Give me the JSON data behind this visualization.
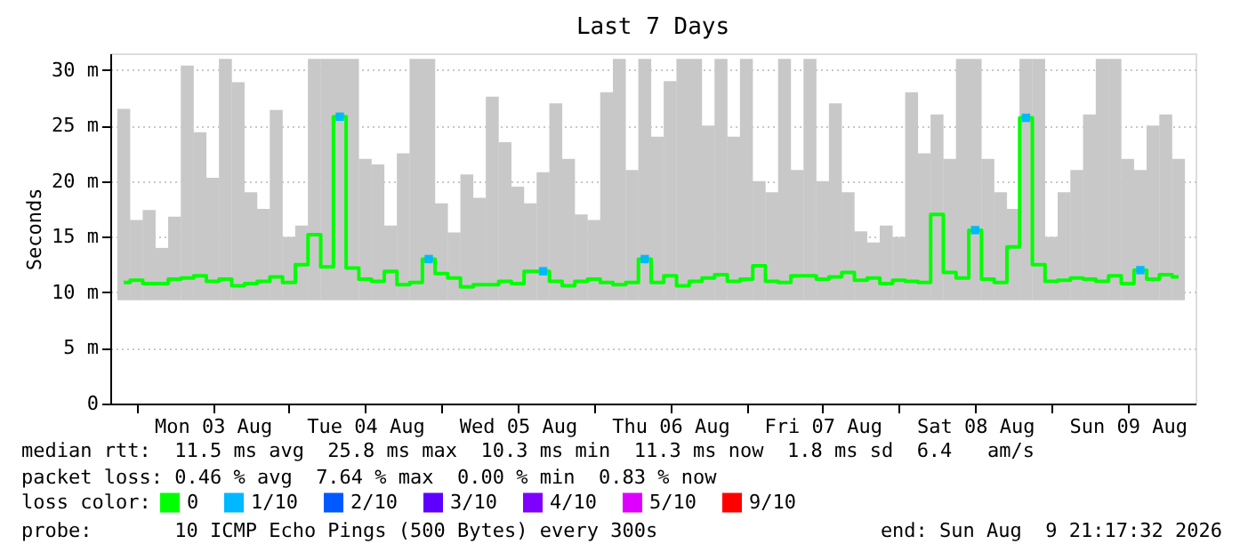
{
  "chart_data": {
    "type": "step",
    "title": "Last 7 Days",
    "ylabel": "Seconds",
    "legend_title": "loss color:",
    "legend": "bottom",
    "grid": true,
    "marker": "none",
    "xlim": [
      "2026-08-02T21:17",
      "2026-08-09T21:17"
    ],
    "xticks": [
      {
        "value": "2026-08-03T00:00",
        "label": null
      },
      {
        "value": "2026-08-03T12:00",
        "label": "Mon 03 Aug"
      },
      {
        "value": "2026-08-04T00:00",
        "label": null
      },
      {
        "value": "2026-08-04T12:00",
        "label": "Tue 04 Aug"
      },
      {
        "value": "2026-08-05T00:00",
        "label": null
      },
      {
        "value": "2026-08-05T12:00",
        "label": "Wed 05 Aug"
      },
      {
        "value": "2026-08-06T00:00",
        "label": null
      },
      {
        "value": "2026-08-06T12:00",
        "label": "Thu 06 Aug"
      },
      {
        "value": "2026-08-07T00:00",
        "label": null
      },
      {
        "value": "2026-08-07T12:00",
        "label": "Fri 07 Aug"
      },
      {
        "value": "2026-08-08T00:00",
        "label": null
      },
      {
        "value": "2026-08-08T12:00",
        "label": "Sat 08 Aug"
      },
      {
        "value": "2026-08-09T00:00",
        "label": null
      },
      {
        "value": "2026-08-09T12:00",
        "label": "Sun 09 Aug"
      }
    ],
    "ylim": [
      0,
      31.5
    ],
    "yticks": [
      0,
      {
        "value": 5,
        "label": "5 m"
      },
      {
        "value": 10,
        "label": "10 m"
      },
      {
        "value": 15,
        "label": "15 m"
      },
      {
        "value": 20,
        "label": "20 m"
      },
      {
        "value": 25,
        "label": "25 m"
      },
      {
        "value": 30,
        "label": "30 m"
      }
    ],
    "x": [
      "2026-08-02T22:00",
      "2026-08-03T00:00",
      "2026-08-03T02:00",
      "2026-08-03T04:00",
      "2026-08-03T06:00",
      "2026-08-03T08:00",
      "2026-08-03T10:00",
      "2026-08-03T12:00",
      "2026-08-03T14:00",
      "2026-08-03T16:00",
      "2026-08-03T18:00",
      "2026-08-03T20:00",
      "2026-08-03T22:00",
      "2026-08-04T00:00",
      "2026-08-04T02:00",
      "2026-08-04T04:00",
      "2026-08-04T06:00",
      "2026-08-04T08:00",
      "2026-08-04T10:00",
      "2026-08-04T12:00",
      "2026-08-04T14:00",
      "2026-08-04T16:00",
      "2026-08-04T18:00",
      "2026-08-04T20:00",
      "2026-08-04T22:00",
      "2026-08-05T00:00",
      "2026-08-05T02:00",
      "2026-08-05T04:00",
      "2026-08-05T06:00",
      "2026-08-05T08:00",
      "2026-08-05T10:00",
      "2026-08-05T12:00",
      "2026-08-05T14:00",
      "2026-08-05T16:00",
      "2026-08-05T18:00",
      "2026-08-05T20:00",
      "2026-08-05T22:00",
      "2026-08-06T00:00",
      "2026-08-06T02:00",
      "2026-08-06T04:00",
      "2026-08-06T06:00",
      "2026-08-06T08:00",
      "2026-08-06T10:00",
      "2026-08-06T12:00",
      "2026-08-06T14:00",
      "2026-08-06T16:00",
      "2026-08-06T18:00",
      "2026-08-06T20:00",
      "2026-08-06T22:00",
      "2026-08-07T00:00",
      "2026-08-07T02:00",
      "2026-08-07T04:00",
      "2026-08-07T06:00",
      "2026-08-07T08:00",
      "2026-08-07T10:00",
      "2026-08-07T12:00",
      "2026-08-07T14:00",
      "2026-08-07T16:00",
      "2026-08-07T18:00",
      "2026-08-07T20:00",
      "2026-08-07T22:00",
      "2026-08-08T00:00",
      "2026-08-08T02:00",
      "2026-08-08T04:00",
      "2026-08-08T06:00",
      "2026-08-08T08:00",
      "2026-08-08T10:00",
      "2026-08-08T12:00",
      "2026-08-08T14:00",
      "2026-08-08T16:00",
      "2026-08-08T18:00",
      "2026-08-08T20:00",
      "2026-08-08T22:00",
      "2026-08-09T00:00",
      "2026-08-09T02:00",
      "2026-08-09T04:00",
      "2026-08-09T06:00",
      "2026-08-09T08:00",
      "2026-08-09T10:00",
      "2026-08-09T12:00",
      "2026-08-09T14:00",
      "2026-08-09T16:00",
      "2026-08-09T18:00",
      "2026-08-09T20:00"
    ],
    "series": [
      {
        "type": "bar",
        "color": "#c8c8c8",
        "base": [
          9.3,
          9.3,
          9.3,
          9.3,
          9.3,
          9.3,
          9.3,
          9.3,
          9.3,
          9.3,
          9.3,
          9.3,
          9.3,
          9.3,
          9.3,
          9.3,
          9.3,
          9.3,
          9.3,
          9.3,
          9.3,
          9.3,
          9.3,
          9.3,
          9.3,
          9.3,
          9.3,
          9.3,
          9.3,
          9.3,
          9.3,
          9.3,
          9.3,
          9.3,
          9.3,
          9.3,
          9.3,
          9.3,
          9.3,
          9.3,
          9.3,
          9.3,
          9.3,
          9.3,
          9.3,
          9.3,
          9.3,
          9.3,
          9.3,
          9.3,
          9.3,
          9.3,
          9.3,
          9.3,
          9.3,
          9.3,
          9.3,
          9.3,
          9.3,
          9.3,
          9.3,
          9.3,
          9.3,
          9.3,
          9.3,
          9.3,
          9.3,
          9.3,
          9.3,
          9.3,
          9.3,
          9.3,
          9.3,
          9.3,
          9.3,
          9.3,
          9.3,
          9.3,
          9.3,
          9.3,
          9.3,
          9.3,
          9.3,
          9.3
        ],
        "values": [
          17.2,
          7.2,
          8.1,
          4.7,
          7.5,
          21.1,
          15.1,
          11.0,
          21.7,
          19.6,
          9.7,
          8.2,
          17.1,
          5.7,
          6.7,
          21.7,
          21.7,
          21.7,
          21.7,
          12.7,
          12.2,
          6.7,
          13.2,
          21.7,
          21.7,
          8.7,
          6.1,
          11.3,
          9.2,
          18.3,
          14.2,
          10.2,
          8.7,
          11.5,
          17.7,
          12.7,
          7.7,
          7.2,
          18.7,
          21.7,
          11.7,
          21.7,
          14.7,
          19.7,
          21.7,
          21.7,
          15.7,
          21.7,
          14.7,
          21.7,
          10.7,
          9.7,
          21.7,
          11.7,
          21.7,
          10.7,
          17.7,
          9.7,
          6.2,
          5.2,
          6.7,
          5.7,
          18.7,
          13.2,
          16.7,
          12.7,
          21.7,
          21.7,
          12.7,
          9.7,
          8.2,
          21.7,
          21.7,
          5.7,
          9.7,
          11.7,
          16.7,
          21.7,
          21.7,
          12.7,
          11.7,
          15.7,
          16.7,
          12.7
        ]
      },
      {
        "name": "0",
        "color": "#00ff00",
        "values": [
          10.9,
          11.1,
          10.8,
          10.8,
          11.2,
          11.3,
          11.5,
          11.0,
          11.2,
          10.6,
          10.8,
          11.0,
          11.4,
          10.9,
          12.5,
          15.2,
          12.3,
          25.8,
          12.2,
          11.2,
          11.0,
          11.9,
          10.7,
          10.9,
          13.0,
          11.7,
          11.3,
          10.5,
          10.7,
          10.7,
          11.0,
          10.8,
          11.9,
          11.9,
          11.0,
          10.6,
          11.0,
          11.2,
          10.9,
          10.7,
          10.9,
          13.0,
          10.9,
          11.5,
          10.6,
          11.0,
          11.3,
          11.6,
          11.0,
          11.2,
          12.4,
          11.0,
          10.9,
          11.5,
          11.5,
          11.2,
          11.4,
          11.8,
          11.1,
          11.3,
          10.8,
          11.1,
          11.0,
          10.9,
          17.0,
          11.8,
          11.3,
          15.6,
          11.2,
          10.9,
          14.1,
          25.7,
          12.5,
          11.0,
          11.1,
          11.3,
          11.2,
          11.0,
          11.5,
          10.8,
          12.0,
          11.2,
          11.6,
          11.4
        ]
      },
      {
        "name": "1/10",
        "type": "scatter",
        "marker": "square",
        "color": "#00b8ff",
        "x": [
          "2026-08-04T08:00",
          "2026-08-04T22:00",
          "2026-08-05T16:00",
          "2026-08-06T08:00",
          "2026-08-08T12:00",
          "2026-08-08T20:00",
          "2026-08-09T14:00"
        ],
        "values": [
          25.8,
          13.0,
          11.9,
          13.0,
          15.6,
          25.7,
          12.0
        ]
      },
      {
        "name": "2/10",
        "type": "scatter",
        "marker": "square",
        "color": "#0059ff",
        "values": [
          null,
          null,
          null,
          null,
          null,
          null,
          null,
          null,
          null,
          null,
          null,
          null,
          null,
          null,
          null,
          null,
          null,
          null,
          null,
          null,
          null,
          null,
          null,
          null,
          null,
          null,
          null,
          null,
          null,
          null,
          null,
          null,
          null,
          null,
          null,
          null,
          null,
          null,
          null,
          null,
          null,
          null,
          null,
          null,
          null,
          null,
          null,
          null,
          null,
          null,
          null,
          null,
          null,
          null,
          null,
          null,
          null,
          null,
          null,
          null,
          null,
          null,
          null,
          null,
          null,
          null,
          null,
          null,
          null,
          null,
          null,
          null,
          null,
          null,
          null,
          null,
          null,
          null,
          null,
          null,
          null,
          null,
          null,
          null
        ]
      },
      {
        "name": "3/10",
        "type": "scatter",
        "marker": "square",
        "color": "#5e00ff",
        "values": [
          null,
          null,
          null,
          null,
          null,
          null,
          null,
          null,
          null,
          null,
          null,
          null,
          null,
          null,
          null,
          null,
          null,
          null,
          null,
          null,
          null,
          null,
          null,
          null,
          null,
          null,
          null,
          null,
          null,
          null,
          null,
          null,
          null,
          null,
          null,
          null,
          null,
          null,
          null,
          null,
          null,
          null,
          null,
          null,
          null,
          null,
          null,
          null,
          null,
          null,
          null,
          null,
          null,
          null,
          null,
          null,
          null,
          null,
          null,
          null,
          null,
          null,
          null,
          null,
          null,
          null,
          null,
          null,
          null,
          null,
          null,
          null,
          null,
          null,
          null,
          null,
          null,
          null,
          null,
          null,
          null,
          null,
          null,
          null
        ]
      },
      {
        "name": "4/10",
        "type": "scatter",
        "marker": "square",
        "color": "#7e00ff",
        "values": [
          null,
          null,
          null,
          null,
          null,
          null,
          null,
          null,
          null,
          null,
          null,
          null,
          null,
          null,
          null,
          null,
          null,
          null,
          null,
          null,
          null,
          null,
          null,
          null,
          null,
          null,
          null,
          null,
          null,
          null,
          null,
          null,
          null,
          null,
          null,
          null,
          null,
          null,
          null,
          null,
          null,
          null,
          null,
          null,
          null,
          null,
          null,
          null,
          null,
          null,
          null,
          null,
          null,
          null,
          null,
          null,
          null,
          null,
          null,
          null,
          null,
          null,
          null,
          null,
          null,
          null,
          null,
          null,
          null,
          null,
          null,
          null,
          null,
          null,
          null,
          null,
          null,
          null,
          null,
          null,
          null,
          null,
          null,
          null
        ]
      },
      {
        "name": "5/10",
        "type": "scatter",
        "marker": "square",
        "color": "#dd00ff",
        "values": [
          null,
          null,
          null,
          null,
          null,
          null,
          null,
          null,
          null,
          null,
          null,
          null,
          null,
          null,
          null,
          null,
          null,
          null,
          null,
          null,
          null,
          null,
          null,
          null,
          null,
          null,
          null,
          null,
          null,
          null,
          null,
          null,
          null,
          null,
          null,
          null,
          null,
          null,
          null,
          null,
          null,
          null,
          null,
          null,
          null,
          null,
          null,
          null,
          null,
          null,
          null,
          null,
          null,
          null,
          null,
          null,
          null,
          null,
          null,
          null,
          null,
          null,
          null,
          null,
          null,
          null,
          null,
          null,
          null,
          null,
          null,
          null,
          null,
          null,
          null,
          null,
          null,
          null,
          null,
          null,
          null,
          null,
          null,
          null
        ]
      },
      {
        "name": "9/10",
        "type": "scatter",
        "marker": "square",
        "color": "#ff0000",
        "values": [
          null,
          null,
          null,
          null,
          null,
          null,
          null,
          null,
          null,
          null,
          null,
          null,
          null,
          null,
          null,
          null,
          null,
          null,
          null,
          null,
          null,
          null,
          null,
          null,
          null,
          null,
          null,
          null,
          null,
          null,
          null,
          null,
          null,
          null,
          null,
          null,
          null,
          null,
          null,
          null,
          null,
          null,
          null,
          null,
          null,
          null,
          null,
          null,
          null,
          null,
          null,
          null,
          null,
          null,
          null,
          null,
          null,
          null,
          null,
          null,
          null,
          null,
          null,
          null,
          null,
          null,
          null,
          null,
          null,
          null,
          null,
          null,
          null,
          null,
          null,
          null,
          null,
          null,
          null,
          null,
          null,
          null,
          null,
          null
        ]
      }
    ],
    "annotations": [
      "median rtt:  11.5 ms avg  25.8 ms max  10.3 ms min  11.3 ms now  1.8 ms sd  6.4   am/s",
      "packet loss: 0.46 % avg  7.64 % max  0.00 % min  0.83 % now",
      "probe:       10 ICMP Echo Pings (500 Bytes) every 300s",
      "end: Sun Aug  9 21:17:32 2026"
    ]
  }
}
